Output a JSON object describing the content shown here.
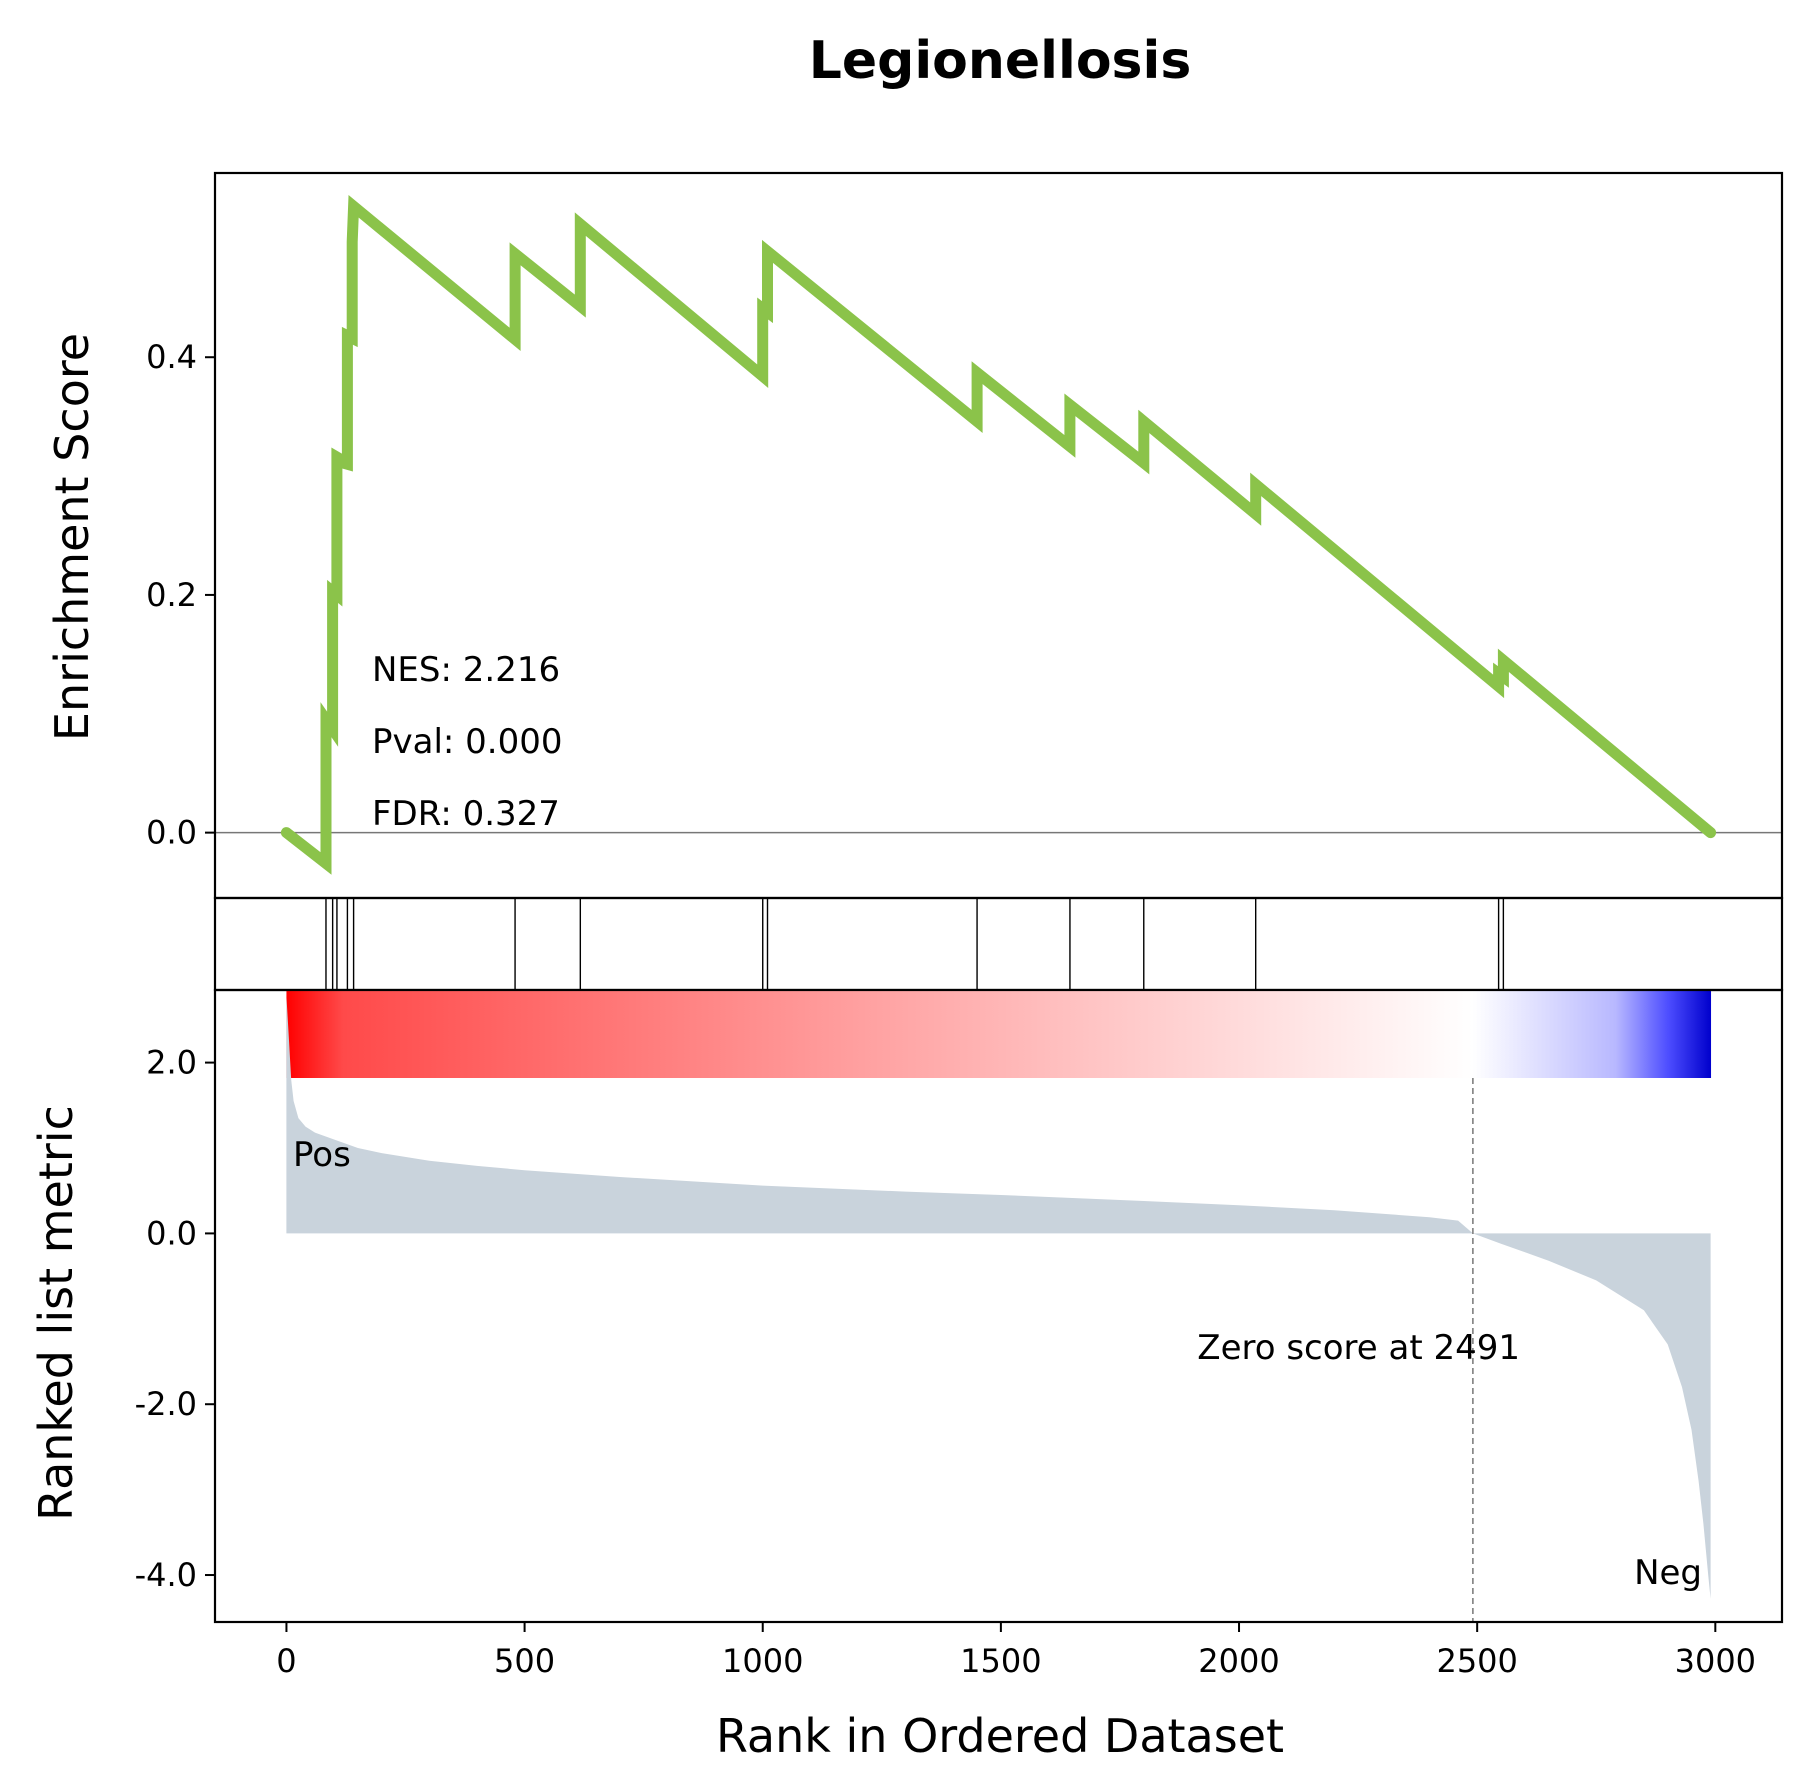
{
  "chart_data": {
    "type": "line",
    "title": "Legionellosis",
    "xlabel": "Rank in Ordered Dataset",
    "xlim": [
      -150,
      3140
    ],
    "xticks": [
      0,
      500,
      1000,
      1500,
      2000,
      2500,
      3000
    ],
    "n_genes": 2991,
    "enrichment_panel": {
      "ylabel": "Enrichment Score",
      "ylim": [
        -0.055,
        0.555
      ],
      "yticks": [
        0.0,
        0.2,
        0.4
      ],
      "ytick_labels": [
        "0.0",
        "0.2",
        "0.4"
      ],
      "line_color": "#8bc34a",
      "stats": [
        "NES: 2.216",
        "Pval: 0.000",
        "FDR: 0.327"
      ],
      "series": [
        {
          "x": [
            0,
            83,
            83,
            97,
            97,
            106,
            106,
            110,
            110,
            128,
            128,
            138,
            138,
            141,
            141,
            480,
            480,
            617,
            617,
            1000,
            1000,
            1010,
            1010,
            1450,
            1450,
            1645,
            1645,
            1800,
            1800,
            2035,
            2035,
            2545,
            2545,
            2555,
            2555,
            2990
          ],
          "y": [
            0.0,
            -0.026,
            0.095,
            0.087,
            0.203,
            0.2,
            0.316,
            0.315,
            0.312,
            0.31,
            0.418,
            0.416,
            0.497,
            0.527,
            0.527,
            0.415,
            0.487,
            0.443,
            0.512,
            0.384,
            0.441,
            0.438,
            0.489,
            0.346,
            0.387,
            0.325,
            0.36,
            0.311,
            0.346,
            0.268,
            0.293,
            0.123,
            0.134,
            0.131,
            0.145,
            0.0
          ]
        }
      ]
    },
    "hits_panel": {
      "hit_positions": [
        83,
        97,
        106,
        128,
        141,
        480,
        617,
        1000,
        1010,
        1450,
        1645,
        1800,
        2035,
        2545,
        2555
      ]
    },
    "heatmap_bar": {
      "pos_color": "#ff0000",
      "neg_color": "#0000cc",
      "zero_position": 2491
    },
    "metric_panel": {
      "ylabel": "Ranked list metric",
      "ylim": [
        -4.55,
        2.85
      ],
      "yticks": [
        -4.0,
        -2.0,
        0.0,
        2.0
      ],
      "ytick_labels": [
        "-4.0",
        "-2.0",
        "0.0",
        "2.0"
      ],
      "fill_color": "#c9d3dc",
      "pos_label": "Pos",
      "neg_label": "Neg",
      "pos_label_color": "#ff0000",
      "neg_label_color": "#0000ff",
      "zero_annotation": "Zero score at 2491",
      "zero_position": 2491,
      "series": [
        {
          "x": [
            0,
            5,
            10,
            15,
            25,
            40,
            60,
            100,
            150,
            200,
            300,
            400,
            500,
            700,
            1000,
            1300,
            1500,
            1800,
            2000,
            2200,
            2400,
            2460,
            2491,
            2550,
            2650,
            2750,
            2850,
            2900,
            2930,
            2950,
            2965,
            2975,
            2980,
            2985,
            2990
          ],
          "y": [
            2.78,
            2.3,
            1.8,
            1.55,
            1.35,
            1.25,
            1.18,
            1.1,
            1.0,
            0.94,
            0.85,
            0.79,
            0.74,
            0.66,
            0.56,
            0.49,
            0.45,
            0.38,
            0.33,
            0.27,
            0.19,
            0.15,
            0.0,
            -0.12,
            -0.32,
            -0.55,
            -0.9,
            -1.3,
            -1.8,
            -2.3,
            -2.9,
            -3.4,
            -3.7,
            -4.0,
            -4.28
          ]
        }
      ]
    }
  }
}
